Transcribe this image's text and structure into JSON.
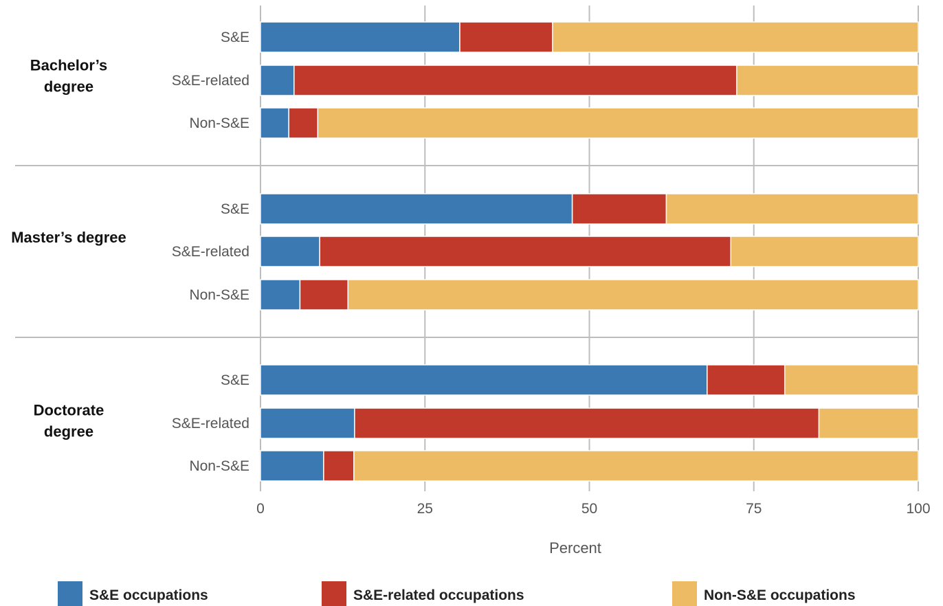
{
  "chart_data": {
    "type": "bar",
    "orientation": "horizontal",
    "stacked": true,
    "xlabel": "Percent",
    "xlim": [
      0,
      100
    ],
    "x_ticks": [
      "0",
      "25",
      "50",
      "75",
      "100"
    ],
    "grid": true,
    "legend_position": "bottom",
    "groups": [
      {
        "label": "Bachelor’s degree",
        "label_lines": [
          "Bachelor’s",
          "degree"
        ],
        "rows": [
          {
            "label": "S&E",
            "values": [
              30.3,
              14.1,
              55.6
            ]
          },
          {
            "label": "S&E-related",
            "values": [
              5.1,
              67.3,
              27.6
            ]
          },
          {
            "label": "Non-S&E",
            "values": [
              4.3,
              4.4,
              91.3
            ]
          }
        ]
      },
      {
        "label": "Master’s degree",
        "label_lines": [
          "Master’s degree"
        ],
        "rows": [
          {
            "label": "S&E",
            "values": [
              47.4,
              14.3,
              38.3
            ]
          },
          {
            "label": "S&E-related",
            "values": [
              9.0,
              62.5,
              28.5
            ]
          },
          {
            "label": "Non-S&E",
            "values": [
              6.0,
              7.3,
              86.7
            ]
          }
        ]
      },
      {
        "label": "Doctorate degree",
        "label_lines": [
          "Doctorate",
          "degree"
        ],
        "rows": [
          {
            "label": "S&E",
            "values": [
              67.9,
              11.8,
              20.3
            ]
          },
          {
            "label": "S&E-related",
            "values": [
              14.3,
              70.6,
              15.1
            ]
          },
          {
            "label": "Non-S&E",
            "values": [
              9.6,
              4.6,
              85.8
            ]
          }
        ]
      }
    ],
    "series": [
      {
        "name": "S&E occupations",
        "color": "#3b79b2"
      },
      {
        "name": "S&E-related occupations",
        "color": "#c0392b"
      },
      {
        "name": "Non-S&E occupations",
        "color": "#edbb63"
      }
    ]
  }
}
